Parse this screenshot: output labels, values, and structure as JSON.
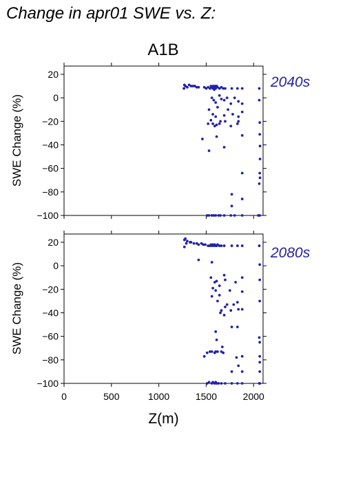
{
  "figure": {
    "title": "Change in apr01 SWE vs. Z:",
    "scenario": "A1B",
    "accent_color": "#2222aa"
  },
  "chart_data": [
    {
      "type": "scatter",
      "panel_label": "2040s",
      "xlabel": "",
      "ylabel": "SWE Change (%)",
      "xlim": [
        0,
        2100
      ],
      "ylim": [
        -100,
        27
      ],
      "xticks": [
        0,
        500,
        1000,
        1500,
        2000
      ],
      "yticks": [
        20,
        0,
        -20,
        -40,
        -60,
        -80,
        -100
      ],
      "yticklabels": [
        "20",
        "0",
        "−20",
        "−40",
        "−60",
        "−80",
        "−100"
      ],
      "grid": false,
      "color": "#2222aa",
      "points": [
        [
          1265,
          8
        ],
        [
          1270,
          11
        ],
        [
          1280,
          10
        ],
        [
          1300,
          9
        ],
        [
          1320,
          11
        ],
        [
          1340,
          10
        ],
        [
          1360,
          10
        ],
        [
          1380,
          10
        ],
        [
          1400,
          9
        ],
        [
          1420,
          9
        ],
        [
          1480,
          9
        ],
        [
          1500,
          8
        ],
        [
          1520,
          9
        ],
        [
          1540,
          8
        ],
        [
          1550,
          10
        ],
        [
          1560,
          9
        ],
        [
          1570,
          8
        ],
        [
          1575,
          10
        ],
        [
          1580,
          9
        ],
        [
          1585,
          7
        ],
        [
          1590,
          8
        ],
        [
          1595,
          10
        ],
        [
          1600,
          8
        ],
        [
          1605,
          9
        ],
        [
          1610,
          10
        ],
        [
          1620,
          9
        ],
        [
          1640,
          8
        ],
        [
          1660,
          9
        ],
        [
          1680,
          8
        ],
        [
          1700,
          8
        ],
        [
          1770,
          8
        ],
        [
          1830,
          8
        ],
        [
          1880,
          8
        ],
        [
          2060,
          8
        ],
        [
          1560,
          0
        ],
        [
          1580,
          -2
        ],
        [
          1600,
          -4
        ],
        [
          1620,
          -8
        ],
        [
          1640,
          2
        ],
        [
          1660,
          -1
        ],
        [
          1690,
          -2
        ],
        [
          1720,
          0
        ],
        [
          1760,
          -5
        ],
        [
          1800,
          0
        ],
        [
          1840,
          -3
        ],
        [
          1880,
          -5
        ],
        [
          1530,
          -10
        ],
        [
          1570,
          -14
        ],
        [
          1600,
          -16
        ],
        [
          1650,
          -20
        ],
        [
          1690,
          -15
        ],
        [
          1730,
          -10
        ],
        [
          1780,
          -14
        ],
        [
          1840,
          -16
        ],
        [
          1880,
          -12
        ],
        [
          1520,
          -22
        ],
        [
          1550,
          -19
        ],
        [
          1570,
          -22
        ],
        [
          1590,
          -24
        ],
        [
          1610,
          -23
        ],
        [
          1640,
          -22
        ],
        [
          1700,
          -20
        ],
        [
          1760,
          -24
        ],
        [
          1830,
          -22
        ],
        [
          2060,
          -2
        ],
        [
          1460,
          -35
        ],
        [
          1610,
          -33
        ],
        [
          1530,
          -45
        ],
        [
          1690,
          -42
        ],
        [
          1880,
          -32
        ],
        [
          1840,
          -20
        ],
        [
          2065,
          -21
        ],
        [
          2065,
          -31
        ],
        [
          2068,
          -41
        ],
        [
          2068,
          -52
        ],
        [
          2065,
          -64
        ],
        [
          2068,
          -68
        ],
        [
          2060,
          -73
        ],
        [
          1880,
          -64
        ],
        [
          1770,
          -82
        ],
        [
          1880,
          -86
        ],
        [
          1770,
          -92
        ],
        [
          1510,
          -100
        ],
        [
          1530,
          -100
        ],
        [
          1560,
          -100
        ],
        [
          1580,
          -100
        ],
        [
          1600,
          -100
        ],
        [
          1630,
          -100
        ],
        [
          1650,
          -100
        ],
        [
          1690,
          -100
        ],
        [
          1760,
          -100
        ],
        [
          1800,
          -100
        ],
        [
          1880,
          -100
        ],
        [
          2050,
          -100
        ],
        [
          2065,
          -100
        ]
      ]
    },
    {
      "type": "scatter",
      "panel_label": "2080s",
      "xlabel": "Z(m)",
      "ylabel": "SWE Change (%)",
      "xlim": [
        0,
        2100
      ],
      "ylim": [
        -100,
        27
      ],
      "xticks": [
        0,
        500,
        1000,
        1500,
        2000
      ],
      "xticklabels": [
        "0",
        "500",
        "1000",
        "1500",
        "2000"
      ],
      "yticks": [
        20,
        0,
        -20,
        -40,
        -60,
        -80,
        -100
      ],
      "yticklabels": [
        "20",
        "0",
        "−20",
        "−40",
        "−60",
        "−80",
        "−100"
      ],
      "grid": false,
      "color": "#2222aa",
      "points": [
        [
          1270,
          22
        ],
        [
          1280,
          23
        ],
        [
          1290,
          19
        ],
        [
          1300,
          21
        ],
        [
          1330,
          20
        ],
        [
          1340,
          20
        ],
        [
          1370,
          19
        ],
        [
          1400,
          19
        ],
        [
          1420,
          18
        ],
        [
          1450,
          19
        ],
        [
          1470,
          18
        ],
        [
          1490,
          18
        ],
        [
          1520,
          17
        ],
        [
          1540,
          17
        ],
        [
          1550,
          18
        ],
        [
          1560,
          17
        ],
        [
          1570,
          18
        ],
        [
          1580,
          17
        ],
        [
          1590,
          18
        ],
        [
          1600,
          17
        ],
        [
          1610,
          17
        ],
        [
          1620,
          18
        ],
        [
          1640,
          17
        ],
        [
          1660,
          17
        ],
        [
          1690,
          17
        ],
        [
          1770,
          17
        ],
        [
          1830,
          17
        ],
        [
          1880,
          17
        ],
        [
          2060,
          17
        ],
        [
          1270,
          16
        ],
        [
          1420,
          5
        ],
        [
          1560,
          3
        ],
        [
          2065,
          1
        ],
        [
          1550,
          -10
        ],
        [
          1590,
          -14
        ],
        [
          1610,
          -13
        ],
        [
          1570,
          -19
        ],
        [
          1600,
          -21
        ],
        [
          1640,
          -17
        ],
        [
          1690,
          -8
        ],
        [
          1700,
          -12
        ],
        [
          1750,
          -21
        ],
        [
          1810,
          -14
        ],
        [
          1880,
          -10
        ],
        [
          1880,
          -22
        ],
        [
          1880,
          -37
        ],
        [
          2065,
          -12
        ],
        [
          1560,
          -26
        ],
        [
          1620,
          -30
        ],
        [
          1640,
          -25
        ],
        [
          1660,
          -38
        ],
        [
          1700,
          -35
        ],
        [
          1720,
          -33
        ],
        [
          1760,
          -38
        ],
        [
          1790,
          -33
        ],
        [
          1830,
          -31
        ],
        [
          1840,
          -37
        ],
        [
          1690,
          -42
        ],
        [
          1650,
          -40
        ],
        [
          2065,
          -30
        ],
        [
          1770,
          -52
        ],
        [
          1830,
          -52
        ],
        [
          1600,
          -56
        ],
        [
          1610,
          -63
        ],
        [
          1670,
          -69
        ],
        [
          2060,
          -61
        ],
        [
          2065,
          -65
        ],
        [
          2065,
          -77
        ],
        [
          1480,
          -77
        ],
        [
          1510,
          -74
        ],
        [
          1540,
          -73
        ],
        [
          1560,
          -73
        ],
        [
          1590,
          -74
        ],
        [
          1600,
          -73
        ],
        [
          1620,
          -73
        ],
        [
          1660,
          -73
        ],
        [
          1680,
          -74
        ],
        [
          1820,
          -78
        ],
        [
          1880,
          -77
        ],
        [
          2065,
          -82
        ],
        [
          2065,
          -90
        ],
        [
          1840,
          -85
        ],
        [
          1880,
          -90
        ],
        [
          1770,
          -90
        ],
        [
          1510,
          -100
        ],
        [
          1530,
          -99
        ],
        [
          1560,
          -100
        ],
        [
          1570,
          -99
        ],
        [
          1590,
          -100
        ],
        [
          1600,
          -99
        ],
        [
          1610,
          -100
        ],
        [
          1630,
          -100
        ],
        [
          1660,
          -100
        ],
        [
          1700,
          -100
        ],
        [
          1770,
          -100
        ],
        [
          1830,
          -100
        ],
        [
          1880,
          -100
        ],
        [
          2060,
          -100
        ],
        [
          2065,
          -100
        ]
      ]
    }
  ]
}
